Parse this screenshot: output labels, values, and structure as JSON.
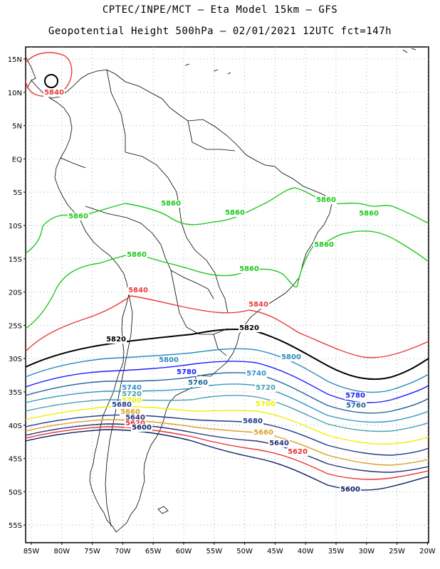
{
  "header": {
    "title_line1": "CPTEC/INPE/MCT –  Eta Model 15km – GFS",
    "title_line2": "Geopotential Height 500hPa – 02/01/2021 12UTC fct=147h"
  },
  "map": {
    "lat_labels": [
      "15N",
      "10N",
      "5N",
      "EQ",
      "5S",
      "10S",
      "15S",
      "20S",
      "25S",
      "30S",
      "35S",
      "40S",
      "45S",
      "50S",
      "55S"
    ],
    "lon_labels": [
      "85W",
      "80W",
      "75W",
      "70W",
      "65W",
      "60W",
      "55W",
      "50W",
      "45W",
      "40W",
      "35W",
      "30W",
      "25W",
      "20W"
    ]
  },
  "contours": {
    "colors": {
      "5860": "#1ec81e",
      "5840": "#e83c3c",
      "5820": "#000000",
      "5800": "#2a8cbe",
      "5780": "#1c1cff",
      "5760": "#1e6496",
      "5740": "#3296c8",
      "5720": "#46a0b4",
      "5700": "#f0f000",
      "5680": "#1e3c8c",
      "5660": "#dca028",
      "5640": "#283278",
      "5620": "#e83232",
      "5600": "#0a1e64"
    },
    "labels": [
      {
        "text": "5840",
        "level": "5840"
      },
      {
        "text": "5860",
        "level": "5860"
      },
      {
        "text": "5860",
        "level": "5860"
      },
      {
        "text": "5860",
        "level": "5860"
      },
      {
        "text": "5860",
        "level": "5860"
      },
      {
        "text": "5860",
        "level": "5860"
      },
      {
        "text": "5860",
        "level": "5860"
      },
      {
        "text": "5860",
        "level": "5860"
      },
      {
        "text": "5860",
        "level": "5860"
      },
      {
        "text": "5840",
        "level": "5840"
      },
      {
        "text": "5840",
        "level": "5840"
      },
      {
        "text": "5820",
        "level": "5820"
      },
      {
        "text": "5820",
        "level": "5820"
      },
      {
        "text": "5800",
        "level": "5800"
      },
      {
        "text": "5800",
        "level": "5800"
      },
      {
        "text": "5780",
        "level": "5780"
      },
      {
        "text": "5760",
        "level": "5760"
      },
      {
        "text": "5740",
        "level": "5740"
      },
      {
        "text": "5720",
        "level": "5720"
      },
      {
        "text": "5740",
        "level": "5740"
      },
      {
        "text": "5720",
        "level": "5720"
      },
      {
        "text": "5780",
        "level": "5780"
      },
      {
        "text": "5760",
        "level": "5760"
      },
      {
        "text": "5700",
        "level": "5700"
      },
      {
        "text": "5700",
        "level": "5700"
      },
      {
        "text": "5680",
        "level": "5680"
      },
      {
        "text": "5680",
        "level": "5680"
      },
      {
        "text": "5660",
        "level": "5660"
      },
      {
        "text": "5660",
        "level": "5660"
      },
      {
        "text": "5640",
        "level": "5640"
      },
      {
        "text": "5640",
        "level": "5640"
      },
      {
        "text": "5620",
        "level": "5620"
      },
      {
        "text": "5620",
        "level": "5620"
      },
      {
        "text": "5600",
        "level": "5600"
      },
      {
        "text": "5600",
        "level": "5600"
      }
    ]
  }
}
